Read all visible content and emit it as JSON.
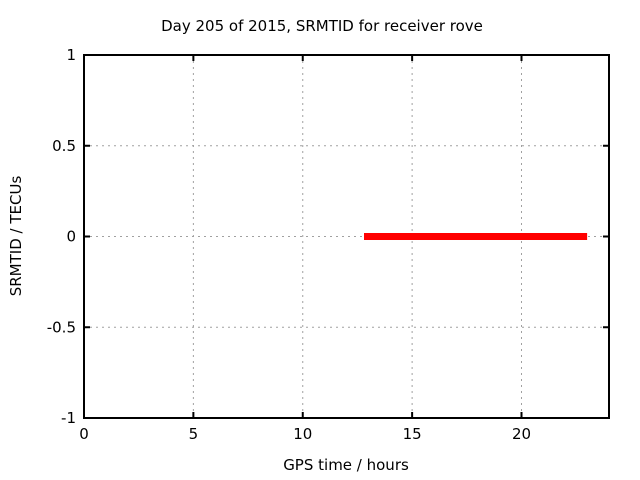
{
  "window": {
    "background": "#ffffff"
  },
  "chart_data": {
    "type": "line",
    "title": "Day 205 of 2015, SRMTID for receiver rove",
    "xlabel": "GPS time / hours",
    "ylabel": "SRMTID / TECUs",
    "xlim": [
      0,
      24
    ],
    "ylim": [
      -1,
      1
    ],
    "xticks": [
      0,
      5,
      10,
      15,
      20
    ],
    "xtick_labels": [
      "0",
      "5",
      "10",
      "15",
      "20"
    ],
    "yticks": [
      1,
      0.5,
      0,
      -0.5,
      -1
    ],
    "ytick_labels": [
      "1",
      "0.5",
      "0",
      "-0.5",
      "-1"
    ],
    "grid": true,
    "grid_color": "#a0a0a0",
    "grid_dash": "2,4",
    "border_color": "#000000",
    "tick_color": "#000000",
    "legend": "none",
    "series": [
      {
        "name": "SRMTID",
        "color": "#ff0000",
        "linewidth": 7,
        "points": [
          [
            12.8,
            0
          ],
          [
            23.0,
            0
          ]
        ]
      }
    ]
  }
}
